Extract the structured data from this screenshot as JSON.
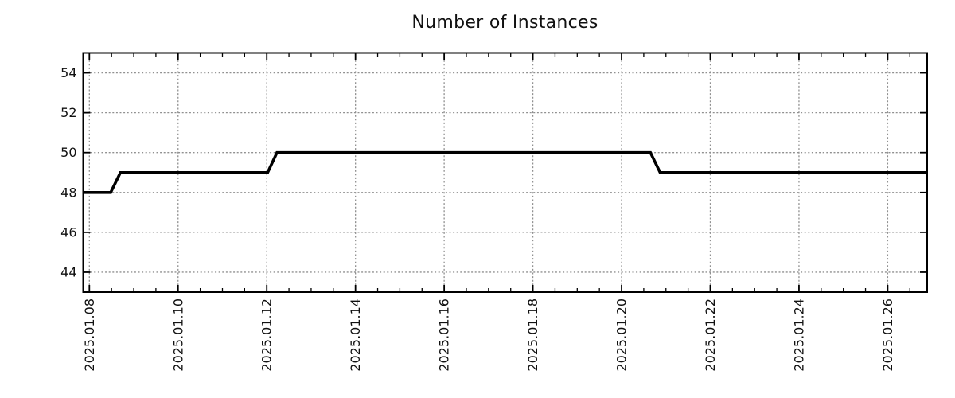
{
  "page": {
    "background": "#ffffff"
  },
  "chart_data": {
    "type": "line",
    "title": "Number of Instances",
    "xlabel": "",
    "ylabel": "",
    "x_unit": "date (January 2025, fractional day of month)",
    "xlim": [
      7.86,
      26.89
    ],
    "ylim": [
      43,
      55
    ],
    "xticks": [
      {
        "value": 8,
        "label": "2025.01.08"
      },
      {
        "value": 10,
        "label": "2025.01.10"
      },
      {
        "value": 12,
        "label": "2025.01.12"
      },
      {
        "value": 14,
        "label": "2025.01.14"
      },
      {
        "value": 16,
        "label": "2025.01.16"
      },
      {
        "value": 18,
        "label": "2025.01.18"
      },
      {
        "value": 20,
        "label": "2025.01.20"
      },
      {
        "value": 22,
        "label": "2025.01.22"
      },
      {
        "value": 24,
        "label": "2025.01.24"
      },
      {
        "value": 26,
        "label": "2025.01.26"
      }
    ],
    "x_minor_tick_interval": 0.5,
    "yticks": [
      {
        "value": 44,
        "label": "44"
      },
      {
        "value": 46,
        "label": "46"
      },
      {
        "value": 48,
        "label": "48"
      },
      {
        "value": 50,
        "label": "50"
      },
      {
        "value": 52,
        "label": "52"
      },
      {
        "value": 54,
        "label": "54"
      }
    ],
    "grid": {
      "show": true,
      "style": "dotted",
      "color": "#909090"
    },
    "legend": {
      "show": false
    },
    "axis_color": "#000000",
    "text_color": "#111111",
    "series": [
      {
        "name": "instances",
        "color": "#000000",
        "line_width": 3.6,
        "points": [
          [
            7.86,
            48
          ],
          [
            8.48,
            48
          ],
          [
            8.7,
            49
          ],
          [
            12.02,
            49
          ],
          [
            12.23,
            50
          ],
          [
            20.65,
            50
          ],
          [
            20.87,
            49
          ],
          [
            26.89,
            49
          ]
        ]
      }
    ]
  }
}
